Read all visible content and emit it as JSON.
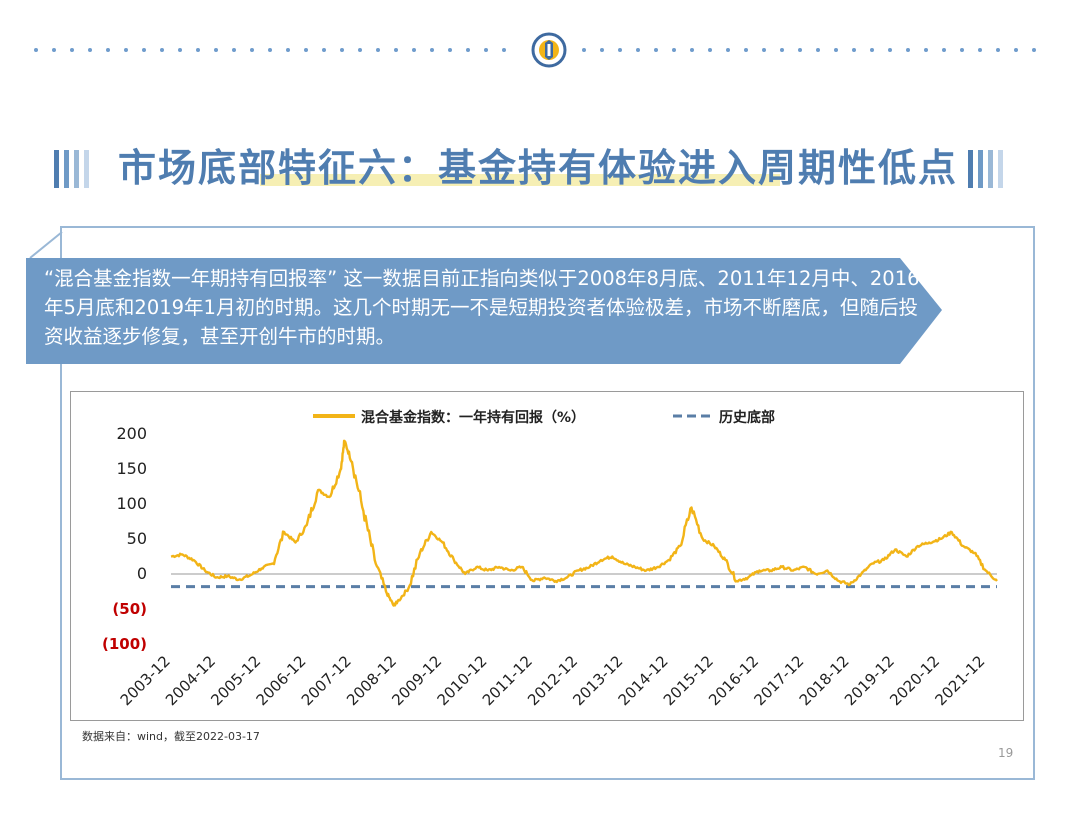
{
  "title": "市场底部特征六：基金持有体验进入周期性低点",
  "callout": "“混合基金指数一年期持有回报率” 这一数据目前正指向类似于2008年8月底、2011年12月中、2016年5月底和2019年1月初的时期。这几个时期无一不是短期投资者体验极差，市场不断磨底，但随后投资收益逐步修复，甚至开创牛市的时期。",
  "source": "数据来自：wind，截至2022-03-17",
  "page_number": "19",
  "colors": {
    "series": "#f2b417",
    "baseline": "#5a7ea6",
    "negative_label": "#c00000",
    "accent": "#4f7db0",
    "callout_bg": "#6f9ac6"
  },
  "chart_data": {
    "type": "line",
    "title": "",
    "xlabel": "",
    "ylabel": "",
    "ylim": [
      -100,
      200
    ],
    "y_ticks": [
      200,
      150,
      100,
      50,
      0,
      -50,
      -100
    ],
    "y_tick_labels": [
      "200",
      "150",
      "100",
      "50",
      "0",
      "(50)",
      "(100)"
    ],
    "x_ticks": [
      "2003-12",
      "2004-12",
      "2005-12",
      "2006-12",
      "2007-12",
      "2008-12",
      "2009-12",
      "2010-12",
      "2011-12",
      "2012-12",
      "2013-12",
      "2014-12",
      "2015-12",
      "2016-12",
      "2017-12",
      "2018-12",
      "2019-12",
      "2020-12",
      "2021-12"
    ],
    "legend": {
      "placement": "top"
    },
    "series": [
      {
        "name": "混合基金指数：一年持有回报（%）",
        "style": "solid",
        "x": [
          "2003-12",
          "2004-03",
          "2004-06",
          "2004-09",
          "2004-12",
          "2005-03",
          "2005-06",
          "2005-09",
          "2005-12",
          "2006-03",
          "2006-06",
          "2006-09",
          "2006-12",
          "2007-03",
          "2007-06",
          "2007-09",
          "2007-10",
          "2007-12",
          "2008-03",
          "2008-06",
          "2008-09",
          "2008-11",
          "2008-12",
          "2009-03",
          "2009-06",
          "2009-09",
          "2009-12",
          "2010-03",
          "2010-06",
          "2010-09",
          "2010-12",
          "2011-03",
          "2011-06",
          "2011-09",
          "2011-12",
          "2012-03",
          "2012-06",
          "2012-09",
          "2012-12",
          "2013-03",
          "2013-06",
          "2013-09",
          "2013-12",
          "2014-03",
          "2014-06",
          "2014-09",
          "2014-12",
          "2015-03",
          "2015-06",
          "2015-09",
          "2015-12",
          "2016-03",
          "2016-06",
          "2016-09",
          "2016-12",
          "2017-03",
          "2017-06",
          "2017-09",
          "2017-12",
          "2018-03",
          "2018-06",
          "2018-09",
          "2018-12",
          "2019-03",
          "2019-06",
          "2019-09",
          "2019-12",
          "2020-03",
          "2020-06",
          "2020-09",
          "2020-12",
          "2021-03",
          "2021-06",
          "2021-09",
          "2021-12",
          "2022-03"
        ],
        "values": [
          25,
          28,
          20,
          5,
          -5,
          -3,
          -8,
          -2,
          8,
          15,
          60,
          45,
          70,
          120,
          110,
          150,
          190,
          160,
          90,
          20,
          -25,
          -45,
          -40,
          -20,
          30,
          60,
          45,
          20,
          0,
          10,
          5,
          10,
          5,
          10,
          -10,
          -5,
          -10,
          -5,
          5,
          10,
          20,
          25,
          15,
          10,
          5,
          10,
          20,
          40,
          95,
          50,
          40,
          20,
          -10,
          -5,
          5,
          5,
          10,
          5,
          10,
          0,
          5,
          -10,
          -15,
          0,
          15,
          20,
          35,
          25,
          40,
          45,
          50,
          60,
          40,
          30,
          5,
          -10
        ]
      },
      {
        "name": "历史底部",
        "style": "dashed",
        "x": [
          "2003-12",
          "2022-03"
        ],
        "values": [
          -18,
          -18
        ]
      }
    ]
  }
}
